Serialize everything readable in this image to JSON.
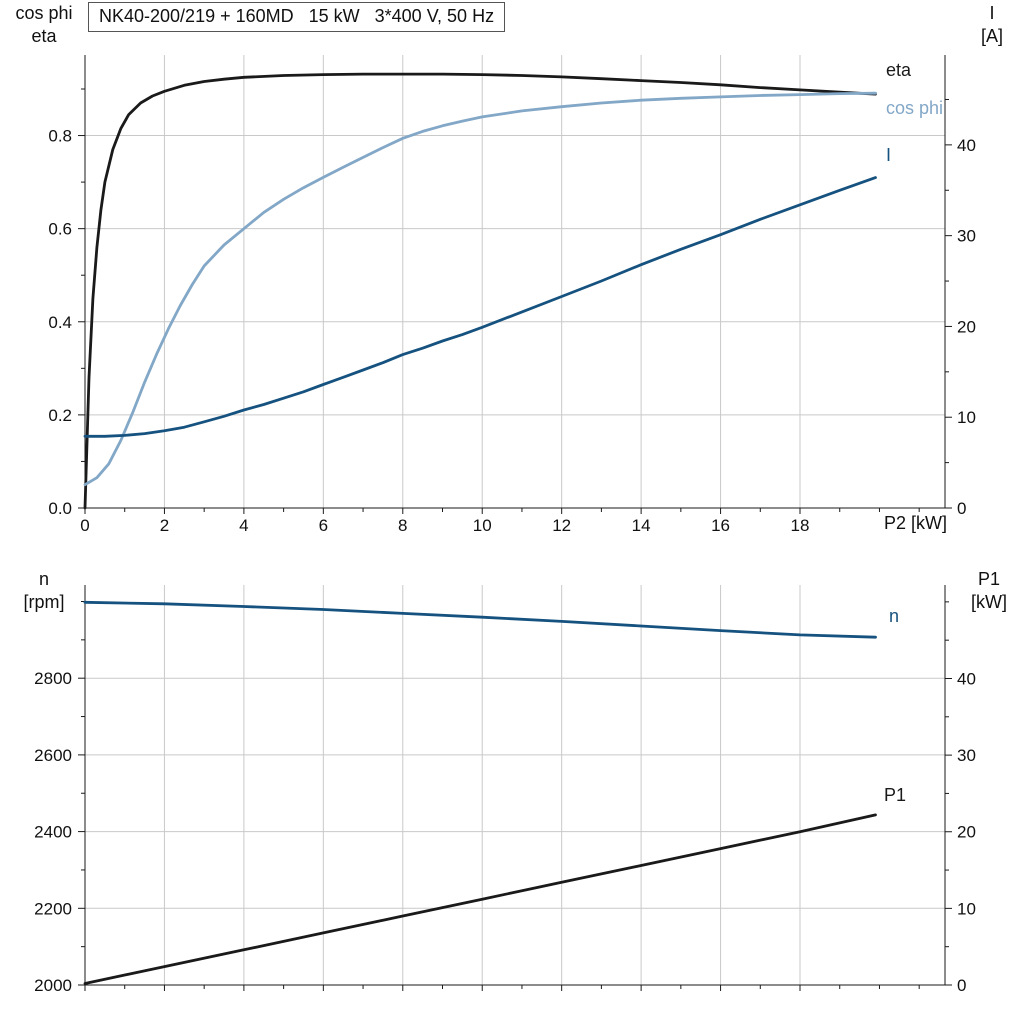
{
  "theme": {
    "background": "#ffffff",
    "grid": "#c9c9c9",
    "axis": "#1a1a1a",
    "text": "#111111",
    "black_curve": "#1a1a1a",
    "light_blue_curve": "#82a7c7",
    "dark_blue_curve": "#16527f"
  },
  "chart_data": [
    {
      "id": "top",
      "type": "line",
      "title": "NK40-200/219 + 160MD   15 kW   3*400 V, 50 Hz",
      "x_axis": {
        "label": "P2 [kW]",
        "ticks": [
          "0",
          "2",
          "4",
          "6",
          "8",
          "10",
          "12",
          "14",
          "16",
          "18"
        ],
        "minor_step": 1,
        "range": [
          0,
          21.65
        ],
        "show_labels": true
      },
      "y_left": {
        "corner_lines": [
          "cos phi",
          "eta"
        ],
        "ticks": [
          "0.0",
          "0.2",
          "0.4",
          "0.6",
          "0.8"
        ],
        "minor_step": 0.1,
        "range": [
          0,
          0.973
        ]
      },
      "y_right": {
        "corner_lines": [
          "I",
          "[A]"
        ],
        "ticks": [
          "0",
          "10",
          "20",
          "30",
          "40"
        ],
        "minor_step": 5,
        "range": [
          0,
          49.9
        ]
      },
      "grid": true,
      "legend_position": "right-of-curves",
      "series": [
        {
          "name": "eta",
          "axis": "left",
          "color": "#1a1a1a",
          "points": [
            [
              0,
              0
            ],
            [
              0.1,
              0.28
            ],
            [
              0.2,
              0.45
            ],
            [
              0.3,
              0.56
            ],
            [
              0.4,
              0.64
            ],
            [
              0.5,
              0.7
            ],
            [
              0.7,
              0.77
            ],
            [
              0.9,
              0.815
            ],
            [
              1.1,
              0.845
            ],
            [
              1.4,
              0.87
            ],
            [
              1.7,
              0.885
            ],
            [
              2,
              0.895
            ],
            [
              2.5,
              0.908
            ],
            [
              3,
              0.916
            ],
            [
              3.5,
              0.921
            ],
            [
              4,
              0.925
            ],
            [
              5,
              0.929
            ],
            [
              6,
              0.931
            ],
            [
              7,
              0.932
            ],
            [
              8,
              0.932
            ],
            [
              9,
              0.932
            ],
            [
              10,
              0.931
            ],
            [
              11,
              0.929
            ],
            [
              12,
              0.926
            ],
            [
              13,
              0.922
            ],
            [
              14,
              0.918
            ],
            [
              15,
              0.914
            ],
            [
              16,
              0.909
            ],
            [
              17,
              0.903
            ],
            [
              18,
              0.898
            ],
            [
              19,
              0.893
            ],
            [
              19.9,
              0.889
            ]
          ]
        },
        {
          "name": "cos phi",
          "axis": "left",
          "color": "#82a7c7",
          "points": [
            [
              0,
              0.05
            ],
            [
              0.3,
              0.065
            ],
            [
              0.6,
              0.095
            ],
            [
              0.9,
              0.145
            ],
            [
              1.2,
              0.205
            ],
            [
              1.5,
              0.27
            ],
            [
              1.8,
              0.33
            ],
            [
              2.1,
              0.385
            ],
            [
              2.4,
              0.435
            ],
            [
              2.7,
              0.48
            ],
            [
              3,
              0.52
            ],
            [
              3.5,
              0.565
            ],
            [
              4,
              0.6
            ],
            [
              4.5,
              0.635
            ],
            [
              5,
              0.663
            ],
            [
              5.5,
              0.688
            ],
            [
              6,
              0.71
            ],
            [
              6.5,
              0.732
            ],
            [
              7,
              0.753
            ],
            [
              7.5,
              0.774
            ],
            [
              8,
              0.794
            ],
            [
              8.5,
              0.809
            ],
            [
              9,
              0.821
            ],
            [
              9.5,
              0.831
            ],
            [
              10,
              0.84
            ],
            [
              11,
              0.853
            ],
            [
              12,
              0.862
            ],
            [
              13,
              0.87
            ],
            [
              14,
              0.876
            ],
            [
              15,
              0.88
            ],
            [
              16,
              0.883
            ],
            [
              17,
              0.886
            ],
            [
              18,
              0.888
            ],
            [
              19,
              0.89
            ],
            [
              19.9,
              0.891
            ]
          ]
        },
        {
          "name": "I",
          "axis": "right",
          "color": "#16527f",
          "points": [
            [
              0,
              7.9
            ],
            [
              0.5,
              7.9
            ],
            [
              1,
              8
            ],
            [
              1.5,
              8.2
            ],
            [
              2,
              8.5
            ],
            [
              2.5,
              8.9
            ],
            [
              3,
              9.5
            ],
            [
              3.5,
              10.1
            ],
            [
              4,
              10.8
            ],
            [
              4.5,
              11.4
            ],
            [
              5,
              12.1
            ],
            [
              5.5,
              12.8
            ],
            [
              6,
              13.6
            ],
            [
              6.5,
              14.4
            ],
            [
              7,
              15.2
            ],
            [
              7.5,
              16
            ],
            [
              8,
              16.9
            ],
            [
              8.5,
              17.6
            ],
            [
              9,
              18.4
            ],
            [
              9.5,
              19.1
            ],
            [
              10,
              19.9
            ],
            [
              11,
              21.6
            ],
            [
              12,
              23.3
            ],
            [
              13,
              25
            ],
            [
              14,
              26.8
            ],
            [
              15,
              28.5
            ],
            [
              16,
              30.1
            ],
            [
              17,
              31.8
            ],
            [
              18,
              33.4
            ],
            [
              19,
              35
            ],
            [
              19.9,
              36.4
            ]
          ]
        }
      ]
    },
    {
      "id": "bottom",
      "type": "line",
      "x_axis": {
        "ticks": [
          "0",
          "2",
          "4",
          "6",
          "8",
          "10",
          "12",
          "14",
          "16",
          "18"
        ],
        "minor_step": 1,
        "range": [
          0,
          21.65
        ],
        "show_labels": false
      },
      "y_left": {
        "corner_lines": [
          "n",
          "[rpm]"
        ],
        "ticks": [
          "2000",
          "2200",
          "2400",
          "2600",
          "2800"
        ],
        "minor_step": 100,
        "range": [
          2000,
          3043
        ]
      },
      "y_right": {
        "corner_lines": [
          "P1",
          "[kW]"
        ],
        "ticks": [
          "0",
          "10",
          "20",
          "30",
          "40"
        ],
        "minor_step": 5,
        "range": [
          0,
          52.2
        ]
      },
      "grid": true,
      "series": [
        {
          "name": "n",
          "axis": "left",
          "color": "#16527f",
          "points": [
            [
              0,
              2998
            ],
            [
              2,
              2994
            ],
            [
              4,
              2987
            ],
            [
              6,
              2979
            ],
            [
              8,
              2969
            ],
            [
              10,
              2959
            ],
            [
              12,
              2948
            ],
            [
              14,
              2936
            ],
            [
              16,
              2924
            ],
            [
              18,
              2913
            ],
            [
              19.9,
              2907
            ]
          ]
        },
        {
          "name": "P1",
          "axis": "right",
          "color": "#1a1a1a",
          "points": [
            [
              0,
              0.2
            ],
            [
              2,
              2.4
            ],
            [
              4,
              4.6
            ],
            [
              6,
              6.8
            ],
            [
              8,
              9
            ],
            [
              10,
              11.2
            ],
            [
              12,
              13.4
            ],
            [
              14,
              15.6
            ],
            [
              16,
              17.8
            ],
            [
              18,
              20
            ],
            [
              19.9,
              22.2
            ]
          ]
        }
      ]
    }
  ]
}
